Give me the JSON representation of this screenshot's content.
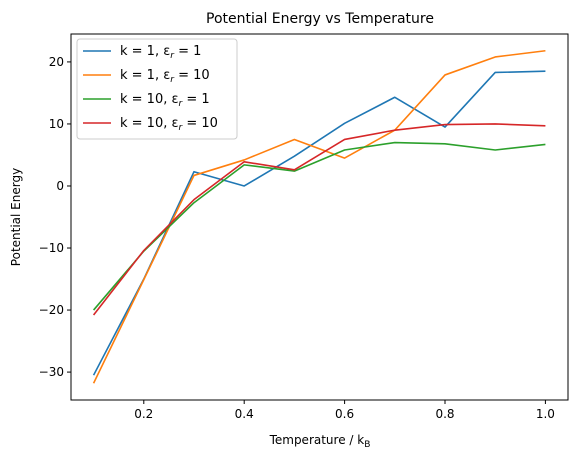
{
  "chart_data": {
    "type": "line",
    "title": "Potential Energy vs Temperature",
    "xlabel": "Temperature / k",
    "xlabel_sub": "B",
    "ylabel": "Potential Energy",
    "xlim": [
      0.055,
      1.045
    ],
    "ylim": [
      -34.5,
      24.5
    ],
    "xticks": [
      0.2,
      0.4,
      0.6,
      0.8,
      1.0
    ],
    "xtick_labels": [
      "0.2",
      "0.4",
      "0.6",
      "0.8",
      "1.0"
    ],
    "yticks": [
      -30,
      -20,
      -10,
      0,
      10,
      20
    ],
    "ytick_labels": [
      "−30",
      "−20",
      "−10",
      "0",
      "10",
      "20"
    ],
    "grid": false,
    "legend_position": "top-left",
    "x": [
      0.1,
      0.2,
      0.3,
      0.4,
      0.5,
      0.6,
      0.7,
      0.8,
      0.9,
      1.0
    ],
    "series": [
      {
        "name_prefix": "k = 1, ε",
        "name_sub": "r",
        "name_suffix": " = 1",
        "color": "#1f77b4",
        "values": [
          -30.5,
          -15.0,
          2.3,
          0.0,
          4.8,
          10.1,
          14.3,
          9.5,
          18.3,
          18.5
        ]
      },
      {
        "name_prefix": "k = 1, ε",
        "name_sub": "r",
        "name_suffix": " = 10",
        "color": "#ff7f0e",
        "values": [
          -31.8,
          -15.1,
          1.7,
          4.2,
          7.5,
          4.5,
          9.0,
          17.9,
          20.8,
          21.8
        ]
      },
      {
        "name_prefix": "k = 10, ε",
        "name_sub": "r",
        "name_suffix": " = 1",
        "color": "#2ca02c",
        "values": [
          -20.0,
          -10.5,
          -2.7,
          3.4,
          2.4,
          5.8,
          7.0,
          6.8,
          5.8,
          6.7
        ]
      },
      {
        "name_prefix": "k = 10, ε",
        "name_sub": "r",
        "name_suffix": " = 10",
        "color": "#d62728",
        "values": [
          -20.8,
          -10.4,
          -2.2,
          3.9,
          2.6,
          7.5,
          9.0,
          9.9,
          10.0,
          9.7
        ]
      }
    ]
  }
}
